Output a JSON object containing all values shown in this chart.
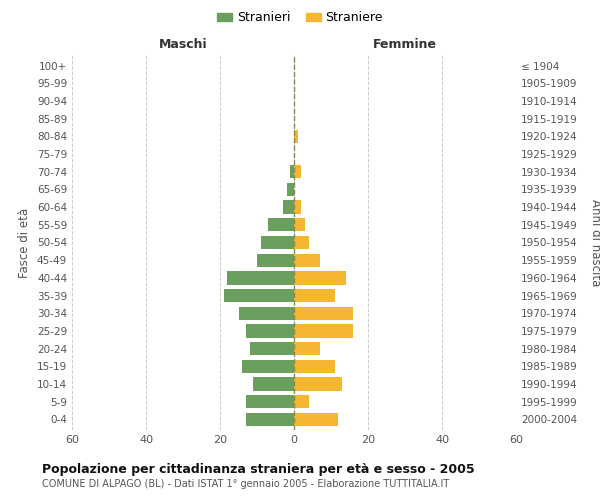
{
  "age_groups": [
    "0-4",
    "5-9",
    "10-14",
    "15-19",
    "20-24",
    "25-29",
    "30-34",
    "35-39",
    "40-44",
    "45-49",
    "50-54",
    "55-59",
    "60-64",
    "65-69",
    "70-74",
    "75-79",
    "80-84",
    "85-89",
    "90-94",
    "95-99",
    "100+"
  ],
  "birth_years": [
    "2000-2004",
    "1995-1999",
    "1990-1994",
    "1985-1989",
    "1980-1984",
    "1975-1979",
    "1970-1974",
    "1965-1969",
    "1960-1964",
    "1955-1959",
    "1950-1954",
    "1945-1949",
    "1940-1944",
    "1935-1939",
    "1930-1934",
    "1925-1929",
    "1920-1924",
    "1915-1919",
    "1910-1914",
    "1905-1909",
    "≤ 1904"
  ],
  "males": [
    13,
    13,
    11,
    14,
    12,
    13,
    15,
    19,
    18,
    10,
    9,
    7,
    3,
    2,
    1,
    0,
    0,
    0,
    0,
    0,
    0
  ],
  "females": [
    12,
    4,
    13,
    11,
    7,
    16,
    16,
    11,
    14,
    7,
    4,
    3,
    2,
    0,
    2,
    0,
    1,
    0,
    0,
    0,
    0
  ],
  "male_color": "#6a9f5e",
  "female_color": "#f5b731",
  "title": "Popolazione per cittadinanza straniera per età e sesso - 2005",
  "subtitle": "COMUNE DI ALPAGO (BL) - Dati ISTAT 1° gennaio 2005 - Elaborazione TUTTITALIA.IT",
  "left_label": "Maschi",
  "right_label": "Femmine",
  "y_left_label": "Fasce di età",
  "y_right_label": "Anni di nascita",
  "legend_male": "Stranieri",
  "legend_female": "Straniere",
  "xlim": 60,
  "background_color": "#ffffff",
  "grid_color": "#cccccc"
}
